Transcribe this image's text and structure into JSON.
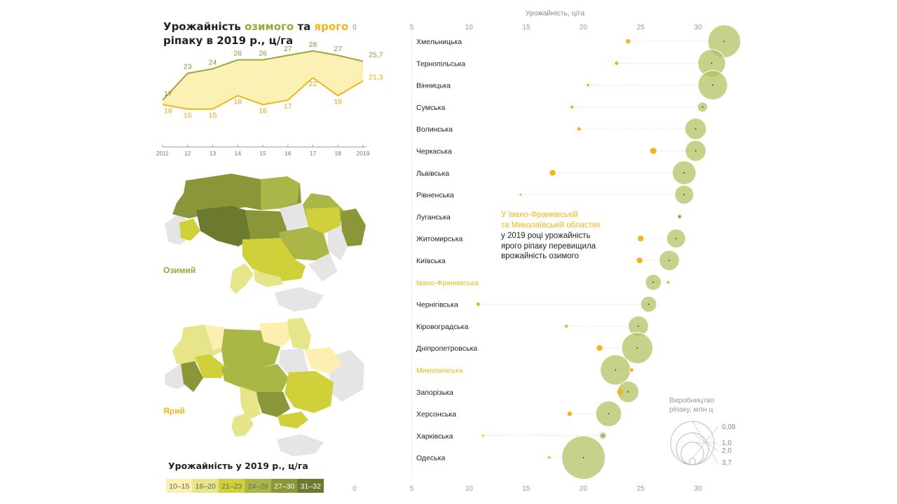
{
  "title": {
    "prefix": "Урожайність ",
    "winter_word": "озимого",
    "middle": " та ",
    "spring_word": "ярого",
    "suffix": " ріпаку в 2019 р., ц/га"
  },
  "colors": {
    "winter": "#9aa53a",
    "winter_fill": "#fbf1b5",
    "spring": "#f2b41a",
    "bubble": "#b5c162",
    "neutral_map": "#e5e5e5"
  },
  "map_labels": {
    "winter": "Озимий",
    "spring": "Ярий"
  },
  "legend": {
    "title": "Урожайність у 2019 р., ц/га",
    "items": [
      {
        "label": "10–15",
        "color": "#fcefb0"
      },
      {
        "label": "16–20",
        "color": "#e6e58a"
      },
      {
        "label": "21–23",
        "color": "#cfd03a"
      },
      {
        "label": "24–26",
        "color": "#aab646"
      },
      {
        "label": "27–30",
        "color": "#8a9638"
      },
      {
        "label": "31–32",
        "color": "#6b7a2e"
      }
    ]
  },
  "bubble_legend": {
    "title_line1": "Виробництво",
    "title_line2": "ріпаку, млн ц",
    "items": [
      {
        "label": "0,08",
        "value": 0.08
      },
      {
        "label": "1,0",
        "value": 1.0
      },
      {
        "label": "2,0",
        "value": 2.0
      },
      {
        "label": "3,7",
        "value": 3.7
      }
    ]
  },
  "annotation": {
    "line1": "У Івано-Франківській",
    "line2": "та Миколаївській областях",
    "line3": "у 2019 році урожайність",
    "line4": "ярого ріпаку перевищила",
    "line5": "врожайність озимого"
  },
  "chart_data": [
    {
      "type": "line",
      "x": [
        "2011",
        "12",
        "13",
        "14",
        "15",
        "16",
        "17",
        "18",
        "2019"
      ],
      "xlim": [
        0,
        8
      ],
      "ylim": [
        12,
        30
      ],
      "series": [
        {
          "name": "озимого",
          "values": [
            17,
            23,
            24,
            26,
            26,
            27,
            28,
            27,
            25.7
          ],
          "labels": [
            "17",
            "23",
            "24",
            "26",
            "26",
            "27",
            "28",
            "27",
            "25,7"
          ]
        },
        {
          "name": "ярого",
          "values": [
            16,
            15,
            15,
            18,
            16,
            17,
            22,
            18,
            21.3
          ],
          "labels": [
            "16",
            "15",
            "15",
            "18",
            "16",
            "17",
            "22",
            "18",
            "21,3"
          ]
        }
      ],
      "yaxis_tick_label": "0"
    },
    {
      "type": "scatter",
      "xlabel": "Урожайність, ц/га",
      "xlim": [
        0,
        32
      ],
      "xticks": [
        0,
        5,
        10,
        15,
        20,
        25,
        30
      ],
      "xtick_labels": [
        "0",
        "5",
        "10",
        "15",
        "20",
        "25",
        "30"
      ],
      "categories": [
        "Хмельницька",
        "Тернопільська",
        "Вінницька",
        "Сумська",
        "Волинська",
        "Черкаська",
        "Львівська",
        "Рівненська",
        "Луганська",
        "Житомирська",
        "Київська",
        "Івано-Франківська",
        "Чернігівська",
        "Кіровоградська",
        "Дніпропетровська",
        "Миколаївська",
        "Запорізька",
        "Херсонська",
        "Харківська",
        "Одеська"
      ],
      "highlight": [
        "Івано-Франківська",
        "Миколаївська"
      ],
      "series": [
        {
          "name": "Озимий",
          "values": [
            32.3,
            31.2,
            31.3,
            30.4,
            29.8,
            29.8,
            28.8,
            28.8,
            28.4,
            28.1,
            27.5,
            26.1,
            25.7,
            24.8,
            24.7,
            22.8,
            23.9,
            22.2,
            21.7,
            20
          ],
          "production": [
            2.1,
            1.5,
            1.7,
            0.2,
            0.9,
            0.85,
            1.1,
            0.7,
            0.05,
            0.7,
            0.8,
            0.5,
            0.5,
            0.8,
            1.9,
            1.8,
            0.9,
            1.3,
            0.1,
            3.7
          ]
        },
        {
          "name": "Ярий",
          "values": [
            23.9,
            22.9,
            20.4,
            19,
            19.6,
            26.1,
            17.3,
            14.5,
            null,
            25,
            24.9,
            27.4,
            10.8,
            18.5,
            21.4,
            24.2,
            23.2,
            18.8,
            11.2,
            17
          ],
          "production": [
            0.03,
            0.02,
            0.01,
            0.015,
            0.02,
            0.06,
            0.05,
            0.005,
            null,
            0.05,
            0.05,
            0.02,
            0.02,
            0.015,
            0.05,
            0.03,
            0.05,
            0.03,
            0.005,
            0.01
          ]
        }
      ]
    }
  ]
}
